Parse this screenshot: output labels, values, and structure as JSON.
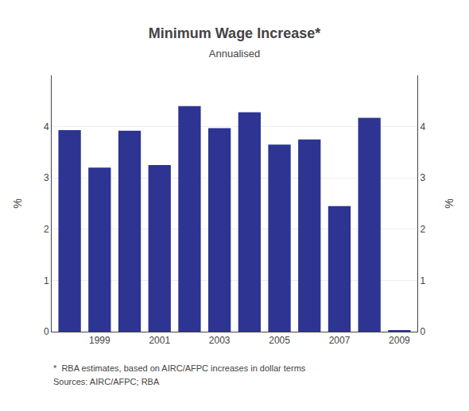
{
  "chart_data": {
    "type": "bar",
    "title": "Minimum Wage Increase*",
    "subtitle": "Annualised",
    "ylabel": "%",
    "y2label": "%",
    "annotations": [
      "*  RBA estimates, based on AIRC/AFPC increases in dollar terms",
      "Sources: AIRC/AFPC; RBA"
    ],
    "x": [
      1998,
      1999,
      2000,
      2001,
      2002,
      2003,
      2004,
      2005,
      2006,
      2007,
      2008,
      2009
    ],
    "values": [
      3.93,
      3.2,
      3.92,
      3.25,
      4.4,
      3.97,
      4.28,
      3.65,
      3.75,
      2.45,
      4.17,
      0.03
    ],
    "color": "#2d3491",
    "xlim": [
      1997.4,
      2009.6
    ],
    "xticks": [
      1999,
      2001,
      2003,
      2005,
      2007,
      2009
    ],
    "ylim": [
      0,
      5.0
    ],
    "yticks": [
      0,
      1,
      2,
      3,
      4
    ],
    "y2lim": [
      0,
      5.0
    ],
    "y2ticks": [
      0,
      1,
      2,
      3,
      4
    ],
    "grid": true
  }
}
